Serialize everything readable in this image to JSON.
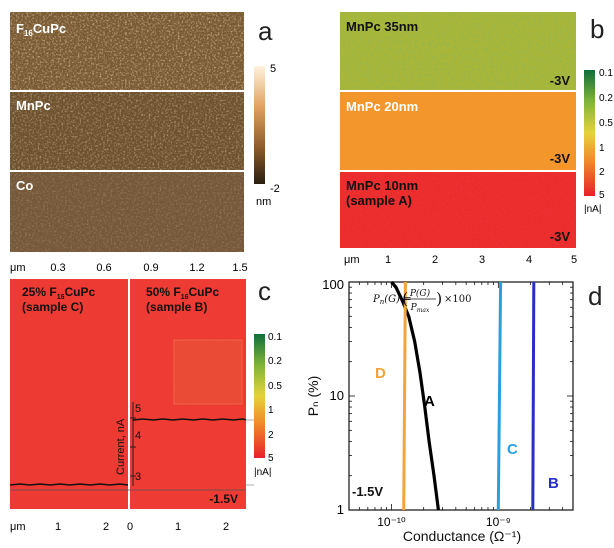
{
  "panel_a": {
    "letter": "a",
    "strips": [
      {
        "label": "F₁₆CuPc",
        "label_base": "F",
        "label_sub": "16",
        "label_rest": "CuPc"
      },
      {
        "label": "MnPc"
      },
      {
        "label": "Co"
      }
    ],
    "scale": {
      "max": "5",
      "min": "-2",
      "unit": "nm"
    },
    "x_unit": "μm",
    "x_ticks": [
      "0.3",
      "0.6",
      "0.9",
      "1.2",
      "1.5"
    ]
  },
  "panel_b": {
    "letter": "b",
    "strips": [
      {
        "label": "MnPc 35nm",
        "bias": "-3V"
      },
      {
        "label": "MnPc 20nm",
        "bias": "-3V"
      },
      {
        "label": "MnPc 10nm",
        "label2": "(sample A)",
        "bias": "-3V"
      }
    ],
    "scale_ticks": [
      "0.1",
      "0.2",
      "0.5",
      "1",
      "2",
      "5"
    ],
    "scale_unit": "|nA|",
    "x_unit": "μm",
    "x_ticks": [
      "1",
      "2",
      "3",
      "4",
      "5"
    ]
  },
  "panel_c": {
    "letter": "c",
    "left_label": {
      "pct": "25% F",
      "sub": "16",
      "rest": "CuPc",
      "sample": "(sample C)"
    },
    "right_label": {
      "pct": "50% F",
      "sub": "16",
      "rest": "CuPc",
      "sample": "(sample B)"
    },
    "current_axis_label": "Current, nA",
    "current_ticks": [
      "5",
      "4",
      "3"
    ],
    "bias": "-1.5V",
    "scale_ticks": [
      "0.1",
      "0.2",
      "0.5",
      "1",
      "2",
      "5"
    ],
    "scale_unit": "|nA|",
    "x_unit": "μm",
    "x_ticks_left": [
      "1",
      "2"
    ],
    "x_ticks_right": [
      "0",
      "1",
      "2"
    ]
  },
  "panel_d": {
    "letter": "d",
    "formula_lhs": "P",
    "formula_sub": "n",
    "formula_arg": "(G) =",
    "formula_num": "P(G)",
    "formula_den": "P",
    "formula_den_sub": "max",
    "formula_tail": "×100",
    "bias": "-1.5V",
    "chart_data": {
      "type": "line",
      "xlabel": "Conductance (Ω⁻¹)",
      "ylabel": "Pₙ (%)",
      "xscale": "log",
      "yscale": "log",
      "xlim": [
        4e-11,
        5e-09
      ],
      "ylim": [
        1,
        100
      ],
      "x_tick_labels": [
        "10⁻¹⁰",
        "10⁻⁹"
      ],
      "y_tick_labels": [
        "1",
        "10",
        "100"
      ],
      "series": [
        {
          "name": "A",
          "color": "#000000",
          "points": [
            [
              1e-10,
              100
            ],
            [
              1.1e-10,
              90
            ],
            [
              1.25e-10,
              70
            ],
            [
              1.45e-10,
              50
            ],
            [
              1.65e-10,
              30
            ],
            [
              1.85e-10,
              16
            ],
            [
              2.05e-10,
              8
            ],
            [
              2.25e-10,
              4
            ],
            [
              2.5e-10,
              2
            ],
            [
              2.75e-10,
              1
            ]
          ]
        },
        {
          "name": "D",
          "color": "#f4a43a",
          "points": [
            [
              1.35e-10,
              100
            ],
            [
              1.3e-10,
              1
            ]
          ]
        },
        {
          "name": "C",
          "color": "#2a9fe0",
          "points": [
            [
              1.05e-09,
              100
            ],
            [
              1e-09,
              1
            ]
          ]
        },
        {
          "name": "B",
          "color": "#2a2ec8",
          "points": [
            [
              2.15e-09,
              100
            ],
            [
              2.1e-09,
              1
            ]
          ]
        }
      ]
    }
  }
}
